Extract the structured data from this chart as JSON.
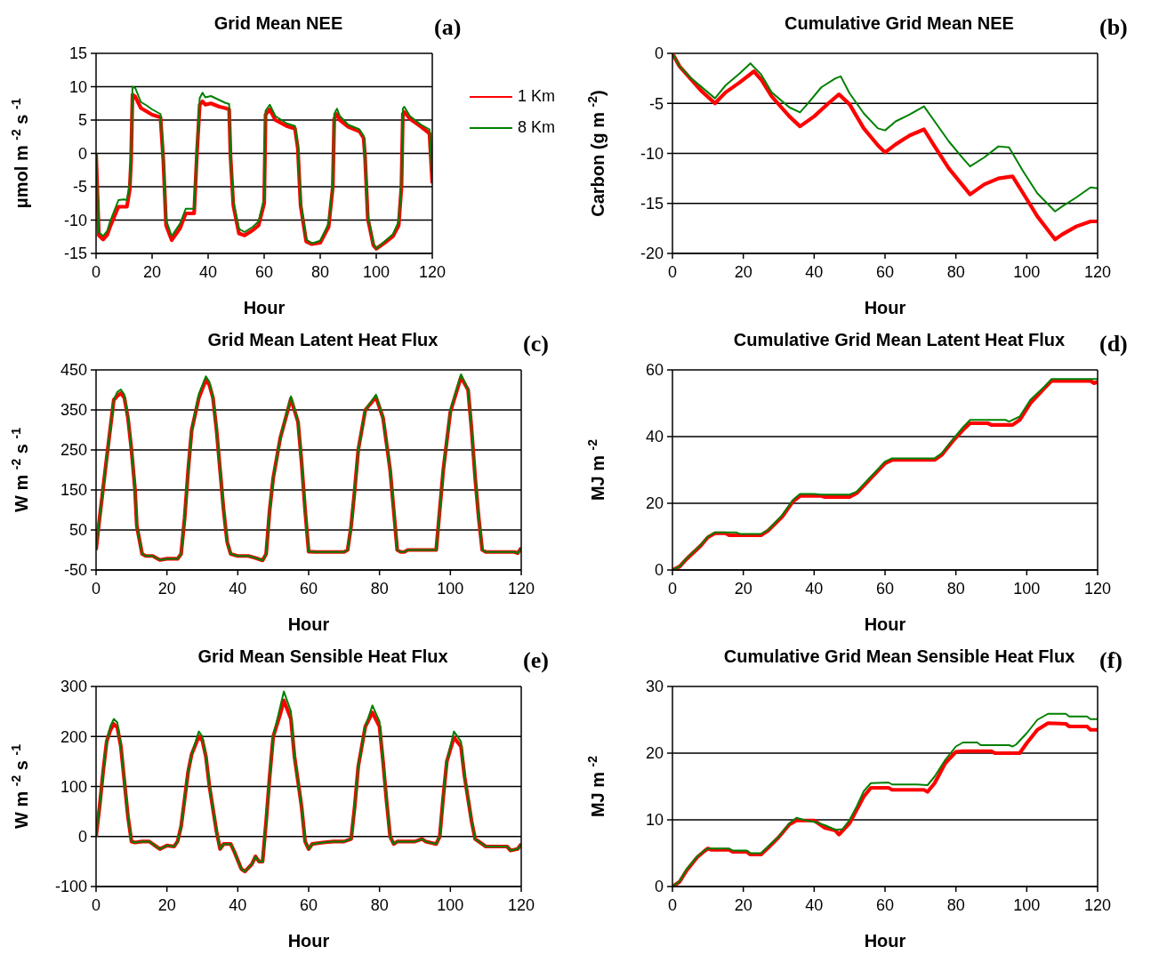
{
  "chart_data": [
    {
      "type": "line",
      "title": "Grid Mean NEE",
      "xlabel": "Hour",
      "ylabel": "μmol m $^{-2}$ s $^{-1}$",
      "annotations": [
        "(a)"
      ],
      "xlim": [
        0,
        120
      ],
      "xticks": [
        0,
        20,
        40,
        60,
        80,
        100,
        120
      ],
      "ylim": [
        -15,
        15
      ],
      "yticks": [
        -15,
        -10,
        -5,
        0,
        5,
        10,
        15
      ],
      "grid": "y",
      "legend": "right",
      "series": [
        {
          "name": "1 Km",
          "color": "#ff0000",
          "x": [
            0,
            1,
            2.5,
            4,
            5,
            8,
            10,
            11,
            12,
            12.5,
            13,
            14,
            16,
            18,
            20,
            23,
            24,
            25,
            27,
            30,
            32,
            35,
            36,
            37,
            38,
            39,
            41,
            44,
            46,
            47.5,
            48,
            49,
            51,
            53,
            56,
            58,
            60,
            60.5,
            62,
            64,
            68,
            71,
            72,
            73,
            75,
            77,
            80,
            83,
            84.5,
            85,
            86,
            87,
            90,
            94,
            95.5,
            96,
            97,
            99,
            100,
            103,
            106,
            108,
            109,
            109.5,
            110,
            112,
            116,
            119,
            120
          ],
          "values": [
            0,
            -12.3,
            -12.9,
            -12.2,
            -11,
            -8,
            -8,
            -8,
            -5.5,
            -1,
            8.8,
            8.5,
            6.8,
            6.3,
            5.8,
            5.4,
            -1,
            -10.8,
            -13,
            -11.2,
            -9,
            -9,
            0,
            7.3,
            7.8,
            7.3,
            7.5,
            7,
            6.8,
            6.6,
            -0.5,
            -7.8,
            -12,
            -12.3,
            -11.5,
            -10.8,
            -7.5,
            5.8,
            6.6,
            5,
            4.1,
            3.7,
            0.8,
            -7.8,
            -13.2,
            -13.6,
            -13.4,
            -11,
            -5,
            5.2,
            5.9,
            5,
            4,
            3.3,
            2.3,
            -0.5,
            -9.8,
            -13.8,
            -14.3,
            -13.4,
            -12.4,
            -10.8,
            -5,
            5.9,
            6.2,
            5.2,
            4,
            3,
            -4.5
          ]
        },
        {
          "name": "8 Km",
          "color": "#008000",
          "x": [
            0,
            1,
            2.5,
            4,
            5,
            8,
            10,
            11,
            12,
            12.5,
            13,
            14,
            16,
            18,
            20,
            23,
            24,
            25,
            27,
            30,
            32,
            35,
            36,
            37,
            38,
            39,
            41,
            44,
            46,
            47.5,
            48,
            49,
            51,
            53,
            56,
            58,
            60,
            60.5,
            62,
            64,
            68,
            71,
            72,
            73,
            75,
            77,
            80,
            83,
            84.5,
            85,
            86,
            87,
            90,
            94,
            95.5,
            96,
            97,
            99,
            100,
            103,
            106,
            108,
            109,
            109.5,
            110,
            112,
            116,
            119,
            120
          ],
          "values": [
            0,
            -11.8,
            -12.4,
            -11.6,
            -10.2,
            -7,
            -6.9,
            -7,
            -4.5,
            -0.2,
            10,
            9.8,
            7.7,
            7.2,
            6.6,
            5.9,
            -0.7,
            -10,
            -12.4,
            -10.5,
            -8.3,
            -8.3,
            0.9,
            8.3,
            9.1,
            8.4,
            8.6,
            8,
            7.6,
            7.4,
            -0.2,
            -7.2,
            -11.3,
            -11.8,
            -11,
            -10.2,
            -6.7,
            6.4,
            7.3,
            5.6,
            4.5,
            4.1,
            1.2,
            -7.2,
            -12.9,
            -13.5,
            -13.1,
            -10.5,
            -4.5,
            5.9,
            6.7,
            5.6,
            4.3,
            3.6,
            2.6,
            -0.2,
            -9.4,
            -13.5,
            -14.3,
            -13.2,
            -12.1,
            -10.2,
            -4.5,
            6.7,
            7,
            5.6,
            4.3,
            3.6,
            -3.7
          ]
        }
      ]
    },
    {
      "type": "line",
      "title": "Cumulative Grid Mean NEE",
      "xlabel": "Hour",
      "ylabel": "Carbon (g m $^{-2}$)",
      "annotations": [
        "(b)"
      ],
      "xlim": [
        0,
        120
      ],
      "xticks": [
        0,
        20,
        40,
        60,
        80,
        100,
        120
      ],
      "ylim": [
        -20,
        0
      ],
      "yticks": [
        -20,
        -15,
        -10,
        -5,
        0
      ],
      "grid": "y",
      "series": [
        {
          "color": "#ff0000",
          "x": [
            0,
            2,
            5,
            8,
            12,
            15,
            19,
            23,
            25,
            28,
            33,
            36,
            40,
            44,
            47,
            50,
            54,
            58,
            60,
            63,
            67,
            71,
            74,
            78,
            84,
            88,
            92,
            96,
            99,
            103,
            108,
            110,
            114,
            118,
            120
          ],
          "values": [
            0,
            -1.3,
            -2.5,
            -3.7,
            -5,
            -3.9,
            -2.9,
            -1.8,
            -2.6,
            -4.3,
            -6.3,
            -7.3,
            -6.3,
            -5,
            -4.1,
            -5.1,
            -7.5,
            -9.2,
            -9.9,
            -9.1,
            -8.2,
            -7.6,
            -9.3,
            -11.5,
            -14.1,
            -13.1,
            -12.5,
            -12.3,
            -14,
            -16.3,
            -18.6,
            -18.1,
            -17.3,
            -16.8,
            -16.8
          ]
        },
        {
          "color": "#008000",
          "x": [
            0,
            2,
            5,
            8,
            12,
            15,
            19,
            22,
            25,
            28,
            33,
            36,
            38,
            42,
            46,
            47.5,
            50,
            54,
            58,
            60,
            63,
            67,
            71,
            74,
            78,
            82,
            84,
            88,
            92,
            95,
            99,
            103,
            108,
            110,
            114,
            118,
            120
          ],
          "values": [
            0,
            -1.3,
            -2.4,
            -3.3,
            -4.5,
            -3.2,
            -2,
            -1,
            -2.1,
            -3.9,
            -5.4,
            -5.9,
            -5.1,
            -3.4,
            -2.5,
            -2.3,
            -4,
            -6,
            -7.5,
            -7.7,
            -6.8,
            -6.1,
            -5.3,
            -6.8,
            -8.8,
            -10.5,
            -11.3,
            -10.4,
            -9.3,
            -9.4,
            -11.8,
            -14,
            -15.8,
            -15.3,
            -14.4,
            -13.4,
            -13.5
          ]
        }
      ]
    },
    {
      "type": "line",
      "title": "Grid Mean Latent Heat Flux",
      "xlabel": "Hour",
      "ylabel": "W m $^{-2}$ s $^{-1}$",
      "annotations": [
        "(c)"
      ],
      "xlim": [
        0,
        120
      ],
      "xticks": [
        0,
        20,
        40,
        60,
        80,
        100,
        120
      ],
      "ylim": [
        -50,
        450
      ],
      "yticks": [
        -50,
        50,
        150,
        250,
        350,
        450
      ],
      "grid": "y",
      "series": [
        {
          "color": "#ff0000",
          "x": [
            0,
            1,
            3,
            5,
            6,
            7,
            8,
            9,
            10,
            11,
            11.5,
            13,
            14,
            16,
            17,
            18,
            20,
            23,
            24,
            25,
            26,
            27,
            29,
            31,
            32,
            33,
            34,
            35,
            36,
            37,
            38,
            40,
            43,
            45,
            47,
            48,
            49,
            50,
            52,
            55,
            57,
            58,
            59,
            60,
            62,
            70,
            71,
            72,
            73,
            74,
            76,
            79,
            81,
            83,
            84,
            85,
            86,
            87,
            88,
            96,
            97,
            98,
            100,
            103,
            105,
            106,
            107,
            108,
            109,
            110,
            118,
            119,
            120
          ],
          "values": [
            0,
            80,
            230,
            375,
            385,
            392,
            380,
            330,
            250,
            150,
            60,
            -10,
            -15,
            -15,
            -20,
            -25,
            -22,
            -22,
            -10,
            80,
            200,
            300,
            380,
            425,
            412,
            380,
            300,
            200,
            100,
            20,
            -10,
            -15,
            -15,
            -20,
            -26,
            -10,
            100,
            180,
            280,
            378,
            320,
            220,
            100,
            -4,
            -5,
            -5,
            0,
            60,
            150,
            250,
            350,
            382,
            330,
            200,
            100,
            0,
            -5,
            -5,
            0,
            0,
            100,
            200,
            345,
            432,
            400,
            300,
            180,
            80,
            0,
            -5,
            -5,
            -8,
            5
          ]
        },
        {
          "color": "#008000",
          "x": [
            0,
            1,
            3,
            5,
            6,
            7,
            8,
            9,
            10,
            11,
            11.5,
            13,
            14,
            16,
            17,
            18,
            20,
            23,
            24,
            25,
            26,
            27,
            29,
            31,
            32,
            33,
            34,
            35,
            36,
            37,
            38,
            40,
            43,
            45,
            47,
            48,
            49,
            50,
            52,
            55,
            57,
            58,
            59,
            60,
            62,
            70,
            71,
            72,
            73,
            74,
            76,
            79,
            81,
            83,
            84,
            85,
            86,
            87,
            88,
            96,
            97,
            98,
            100,
            103,
            105,
            106,
            107,
            108,
            109,
            110,
            118,
            119,
            120
          ],
          "values": [
            0,
            80,
            230,
            375,
            395,
            401,
            388,
            330,
            250,
            150,
            60,
            -10,
            -15,
            -15,
            -20,
            -25,
            -22,
            -22,
            -10,
            80,
            200,
            300,
            390,
            434,
            420,
            380,
            300,
            200,
            100,
            20,
            -10,
            -15,
            -15,
            -20,
            -26,
            -10,
            100,
            180,
            280,
            384,
            320,
            220,
            100,
            -4,
            -5,
            -5,
            0,
            60,
            150,
            250,
            350,
            388,
            330,
            200,
            100,
            0,
            -5,
            -5,
            0,
            0,
            100,
            200,
            350,
            439,
            400,
            300,
            180,
            80,
            0,
            -5,
            -5,
            -8,
            5
          ]
        }
      ]
    },
    {
      "type": "line",
      "title": "Cumulative Grid Mean Latent Heat Flux",
      "xlabel": "Hour",
      "ylabel": "MJ m $^{-2}$",
      "annotations": [
        "(d)"
      ],
      "xlim": [
        0,
        120
      ],
      "xticks": [
        0,
        20,
        40,
        60,
        80,
        100,
        120
      ],
      "ylim": [
        0,
        60
      ],
      "yticks": [
        0,
        20,
        40,
        60
      ],
      "grid": "y",
      "series": [
        {
          "color": "#ff0000",
          "x": [
            0,
            2,
            4,
            8,
            10,
            12,
            15,
            16,
            25,
            27,
            31,
            34,
            36,
            42,
            43,
            50,
            52,
            56,
            60,
            62,
            74,
            76,
            79,
            82,
            84,
            89,
            90,
            96,
            98,
            101,
            105,
            107,
            118,
            119,
            120
          ],
          "values": [
            0,
            1,
            3.3,
            7.3,
            9.8,
            11,
            11,
            10.4,
            10.4,
            11.8,
            16,
            20.5,
            22.2,
            22.2,
            21.9,
            21.9,
            23,
            27.5,
            32,
            33,
            33,
            34.5,
            38.5,
            42,
            44,
            44,
            43.5,
            43.5,
            45,
            50,
            54.5,
            56.7,
            56.7,
            56,
            56.4
          ]
        },
        {
          "color": "#008000",
          "x": [
            0,
            2,
            4,
            8,
            10,
            12,
            18,
            19,
            25,
            27,
            31,
            34,
            36,
            40,
            42,
            50,
            52,
            56,
            60,
            62,
            74,
            76,
            79,
            82,
            84,
            94,
            95,
            98,
            101,
            105,
            107,
            120
          ],
          "values": [
            0,
            1,
            3.5,
            7.5,
            10,
            11.3,
            11.3,
            10.8,
            10.8,
            12,
            16.5,
            21,
            22.8,
            22.8,
            22.6,
            22.6,
            23.5,
            28,
            32.5,
            33.5,
            33.5,
            35,
            39,
            42.8,
            45,
            45,
            44.5,
            46,
            51,
            55,
            57.3,
            57.3
          ]
        }
      ]
    },
    {
      "type": "line",
      "title": "Grid Mean Sensible Heat Flux",
      "xlabel": "Hour",
      "ylabel": "W m $^{-2}$ s $^{-1}$",
      "annotations": [
        "(e)"
      ],
      "xlim": [
        0,
        120
      ],
      "xticks": [
        0,
        20,
        40,
        60,
        80,
        100,
        120
      ],
      "ylim": [
        -100,
        300
      ],
      "yticks": [
        -100,
        0,
        100,
        200,
        300
      ],
      "grid": "y",
      "series": [
        {
          "color": "#ff0000",
          "x": [
            0,
            1,
            2,
            3,
            4,
            5,
            6,
            7,
            8,
            9,
            10,
            11,
            13,
            15,
            17,
            18,
            20,
            22,
            23,
            24,
            26,
            27,
            29,
            30,
            31,
            32,
            34,
            35,
            36,
            38,
            39,
            41,
            42,
            44,
            45,
            46,
            47,
            48,
            49,
            50,
            52,
            53,
            55,
            56,
            58,
            59,
            60,
            61,
            64,
            67,
            70,
            72,
            73,
            74,
            76,
            78,
            80,
            81,
            82,
            83,
            84,
            85,
            87,
            90,
            92,
            93,
            96,
            97,
            98,
            99,
            101,
            103,
            104,
            106,
            107,
            110,
            113,
            116,
            117,
            119,
            120
          ],
          "values": [
            0,
            60,
            130,
            190,
            212,
            225,
            218,
            180,
            110,
            40,
            -10,
            -12,
            -10,
            -10,
            -20,
            -25,
            -18,
            -20,
            -10,
            20,
            130,
            165,
            200,
            192,
            160,
            100,
            10,
            -25,
            -15,
            -15,
            -30,
            -65,
            -70,
            -55,
            -40,
            -50,
            -50,
            30,
            120,
            200,
            245,
            272,
            235,
            160,
            60,
            -10,
            -25,
            -15,
            -12,
            -10,
            -10,
            -5,
            60,
            140,
            220,
            248,
            220,
            150,
            70,
            0,
            -15,
            -10,
            -10,
            -10,
            -5,
            -10,
            -15,
            0,
            80,
            150,
            198,
            180,
            120,
            30,
            -5,
            -20,
            -20,
            -20,
            -28,
            -25,
            -15
          ]
        },
        {
          "color": "#008000",
          "x": [
            0,
            1,
            2,
            3,
            4,
            5,
            6,
            7,
            8,
            9,
            10,
            11,
            13,
            15,
            17,
            18,
            20,
            22,
            23,
            24,
            26,
            27,
            29,
            30,
            31,
            32,
            34,
            35,
            36,
            38,
            39,
            41,
            42,
            44,
            45,
            46,
            47,
            48,
            49,
            50,
            52,
            53,
            55,
            56,
            58,
            59,
            60,
            61,
            64,
            67,
            70,
            72,
            73,
            74,
            76,
            78,
            80,
            81,
            82,
            83,
            84,
            85,
            87,
            90,
            92,
            93,
            96,
            97,
            98,
            99,
            101,
            103,
            104,
            106,
            107,
            110,
            113,
            116,
            117,
            119,
            120
          ],
          "values": [
            0,
            60,
            130,
            190,
            220,
            235,
            228,
            180,
            110,
            40,
            -10,
            -12,
            -10,
            -10,
            -20,
            -25,
            -18,
            -20,
            -10,
            20,
            130,
            165,
            210,
            200,
            160,
            100,
            10,
            -25,
            -15,
            -15,
            -30,
            -65,
            -70,
            -55,
            -40,
            -50,
            -50,
            30,
            120,
            200,
            260,
            290,
            250,
            160,
            60,
            -10,
            -25,
            -15,
            -12,
            -10,
            -10,
            -5,
            60,
            140,
            220,
            262,
            230,
            150,
            70,
            0,
            -15,
            -10,
            -10,
            -10,
            -5,
            -10,
            -15,
            0,
            80,
            150,
            210,
            190,
            120,
            30,
            -5,
            -20,
            -20,
            -20,
            -28,
            -25,
            -15
          ]
        }
      ]
    },
    {
      "type": "line",
      "title": "Cumulative Grid Mean Sensible Heat Flux",
      "xlabel": "Hour",
      "ylabel": "MJ m $^{-2}$",
      "annotations": [
        "(f)"
      ],
      "xlim": [
        0,
        120
      ],
      "xticks": [
        0,
        20,
        40,
        60,
        80,
        100,
        120
      ],
      "ylim": [
        0,
        30
      ],
      "yticks": [
        0,
        10,
        20,
        30
      ],
      "grid": "y",
      "series": [
        {
          "color": "#ff0000",
          "x": [
            0,
            2,
            4,
            7,
            9,
            10,
            11,
            16,
            17,
            21,
            22,
            25,
            27,
            30,
            33,
            35,
            40,
            43,
            46,
            47,
            50,
            52,
            54,
            56,
            61,
            62,
            71,
            72,
            74,
            77,
            80,
            82,
            90,
            91,
            98,
            100,
            103,
            106,
            111,
            112,
            117,
            118,
            120
          ],
          "values": [
            0,
            0.7,
            2.4,
            4.4,
            5.3,
            5.7,
            5.5,
            5.5,
            5.2,
            5.2,
            4.8,
            4.8,
            5.8,
            7.4,
            9.3,
            9.9,
            9.9,
            8.8,
            8.4,
            7.8,
            9.5,
            11.5,
            13.5,
            14.8,
            14.8,
            14.5,
            14.5,
            14.2,
            15.5,
            18.5,
            20.2,
            20.3,
            20.3,
            20,
            20,
            21.5,
            23.5,
            24.5,
            24.4,
            24,
            24,
            23.5,
            23.5
          ]
        },
        {
          "color": "#008000",
          "x": [
            0,
            2,
            4,
            7,
            9,
            10,
            16,
            17,
            21,
            22,
            25,
            27,
            30,
            33,
            35,
            37,
            40,
            43,
            46,
            48,
            50,
            52,
            54,
            56,
            61,
            62,
            69,
            72,
            74,
            77,
            80,
            82,
            86,
            87,
            95,
            96,
            97,
            100,
            103,
            106,
            111,
            112,
            117,
            118,
            120
          ],
          "values": [
            0,
            0.8,
            2.6,
            4.5,
            5.4,
            5.7,
            5.7,
            5.4,
            5.4,
            5,
            5,
            6,
            7.5,
            9.5,
            10.3,
            10,
            9.7,
            9.2,
            8.5,
            8.6,
            10,
            12,
            14.3,
            15.5,
            15.6,
            15.3,
            15.3,
            15.2,
            16.5,
            19,
            21,
            21.6,
            21.6,
            21.2,
            21.2,
            21,
            21.3,
            23,
            25,
            25.9,
            25.9,
            25.5,
            25.5,
            25.1,
            25.1
          ]
        }
      ]
    }
  ]
}
